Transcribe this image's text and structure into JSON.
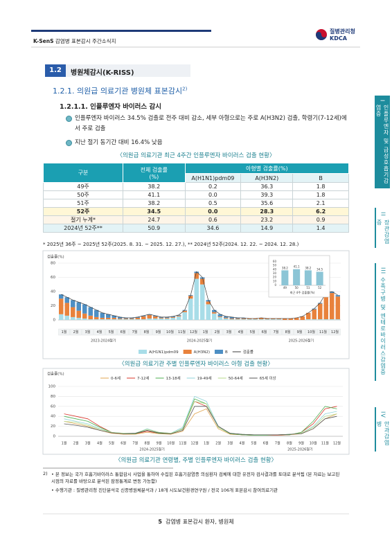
{
  "header": {
    "brand": "K-SenS",
    "title": "감염병 표본감시 주간소식지",
    "org": "질병관리청",
    "org_en": "KDCA"
  },
  "section": {
    "number": "1.2",
    "title": "병원체감시(K-RISS)"
  },
  "subsection": {
    "title": "1.2.1. 의원급 의료기관 병원체 표본감시",
    "note_ref": "2)"
  },
  "subsubsection": {
    "title": "1.2.1.1. 인플루엔자 바이러스 감시"
  },
  "bullets": [
    "인플루엔자 바이러스 34.5% 검출로 전주 대비 감소, 세부 아형으로는 주로 A(H3N2) 검출, 학령기(7-12세)에서 주로 검출",
    "지난 절기 동기간 대비 16.4% 낮음"
  ],
  "table": {
    "title": "〈의원급 의료기관 최근 4주간 인플루엔자 바이러스 검출 현황〉",
    "header": [
      "구분",
      "전체 검출률\n(%)",
      "아형별 검출률(%)"
    ],
    "subheader": [
      "A(H1N1)pdm09",
      "A(H3N2)",
      "B"
    ],
    "rows": [
      [
        "49주",
        "38.2",
        "0.2",
        "36.3",
        "1.8"
      ],
      [
        "50주",
        "41.1",
        "0.0",
        "39.3",
        "1.8"
      ],
      [
        "51주",
        "38.2",
        "0.5",
        "35.6",
        "2.1"
      ],
      [
        "52주",
        "34.5",
        "0.0",
        "28.3",
        "6.2"
      ],
      [
        "절기 누계*",
        "24.7",
        "0.6",
        "23.2",
        "0.9"
      ],
      [
        "2024년 52주**",
        "50.9",
        "34.6",
        "14.9",
        "1.4"
      ]
    ],
    "note": "* 2025년 36주 ~ 2025년 52주(2025. 8. 31. ~ 2025. 12. 27.), ** 2024년 52주(2024. 12. 22. ~ 2024. 12. 28.)"
  },
  "chart_data": [
    {
      "type": "bar",
      "stacked": true,
      "y_label": "검출률(%)",
      "ylim": [
        0,
        80
      ],
      "yticks": [
        0,
        20,
        40,
        60,
        80
      ],
      "grid": true,
      "categories": [
        "1월",
        null,
        "2월",
        null,
        "3월",
        null,
        "4월",
        null,
        "5월",
        null,
        "6월",
        null,
        "7월",
        null,
        "8월",
        null,
        "9월",
        null,
        "10월",
        null,
        "11월",
        null,
        "12월",
        null,
        "1월",
        null,
        "2월",
        null,
        "3월",
        null,
        "4월",
        null,
        "5월",
        null,
        "6월",
        null,
        "7월",
        null,
        "8월",
        null,
        "9월",
        null,
        "10월",
        null,
        "11월",
        null,
        "12월",
        null
      ],
      "seasons": [
        "2023-2024절기",
        "2024-2025절기",
        "2025-2026절기"
      ],
      "series": [
        {
          "name": "A(H1N1)pdm09",
          "color": "#a8dde8",
          "values": [
            8,
            6,
            4,
            3,
            2,
            1,
            1,
            1,
            1,
            1,
            1,
            1,
            1,
            1,
            1,
            2,
            2,
            2,
            2,
            3,
            5,
            11,
            30,
            58,
            50,
            22,
            9,
            4,
            2,
            1,
            1,
            1,
            1,
            1,
            1,
            1,
            1,
            1,
            0,
            0,
            0,
            0,
            1,
            1,
            1,
            1,
            1,
            1
          ]
        },
        {
          "name": "A(H3N2)",
          "color": "#e8823c",
          "values": [
            22,
            18,
            14,
            10,
            7,
            5,
            3,
            2,
            2,
            2,
            1,
            1,
            1,
            2,
            4,
            5,
            3,
            1,
            1,
            1,
            1,
            2,
            4,
            8,
            8,
            4,
            2,
            1,
            1,
            1,
            1,
            1,
            1,
            1,
            2,
            1,
            1,
            1,
            2,
            2,
            3,
            5,
            9,
            14,
            22,
            35,
            37,
            32
          ]
        },
        {
          "name": "B",
          "color": "#4d8fc4",
          "values": [
            6,
            8,
            10,
            12,
            13,
            12,
            10,
            7,
            5,
            3,
            2,
            1,
            1,
            1,
            1,
            1,
            1,
            1,
            1,
            1,
            1,
            1,
            1,
            2,
            2,
            2,
            3,
            3,
            2,
            2,
            1,
            1,
            0,
            0,
            0,
            0,
            0,
            0,
            0,
            0,
            0,
            0,
            0,
            1,
            1,
            2,
            2,
            2
          ]
        },
        {
          "name": "검출률",
          "type": "line",
          "color": "#3a3a3a",
          "values": [
            36,
            32,
            28,
            25,
            22,
            18,
            14,
            10,
            8,
            6,
            4,
            3,
            3,
            4,
            6,
            8,
            6,
            4,
            4,
            5,
            7,
            14,
            35,
            68,
            60,
            28,
            14,
            8,
            5,
            4,
            3,
            3,
            2,
            2,
            3,
            2,
            2,
            2,
            2,
            2,
            3,
            5,
            10,
            16,
            24,
            38,
            40,
            35
          ]
        }
      ]
    },
    {
      "type": "bar",
      "title": "최근 4주 검출률(%)",
      "categories": [
        "49",
        "50",
        "51",
        "52"
      ],
      "values": [
        38.2,
        41.1,
        38.2,
        34.5
      ],
      "color": "#8cc5d6",
      "ylim": [
        0,
        60
      ],
      "yticks": [
        0,
        10,
        20,
        30,
        40,
        50,
        60
      ]
    },
    {
      "type": "line",
      "y_label": "검출률(%)",
      "ylim": [
        0,
        100
      ],
      "yticks": [
        0,
        20,
        40,
        60,
        80,
        100
      ],
      "grid": true,
      "categories": [
        "1월",
        "2월",
        "3월",
        "4월",
        "5월",
        "6월",
        "7월",
        "8월",
        "9월",
        "10월",
        "11월",
        "12월",
        "1월",
        "2월",
        "3월",
        "4월",
        "5월",
        "6월",
        "7월",
        "8월",
        "9월",
        "10월",
        "11월",
        "12월"
      ],
      "seasons": [
        "2024-2025절기",
        "2025-2026절기"
      ],
      "series": [
        {
          "name": "0-6세",
          "color": "#e0a650",
          "values": [
            30,
            25,
            20,
            12,
            6,
            4,
            4,
            8,
            5,
            4,
            10,
            45,
            55,
            15,
            4,
            3,
            2,
            2,
            2,
            3,
            5,
            15,
            35,
            45
          ]
        },
        {
          "name": "7-12세",
          "color": "#d8352a",
          "values": [
            45,
            40,
            35,
            20,
            8,
            5,
            5,
            10,
            6,
            5,
            15,
            70,
            60,
            20,
            5,
            3,
            2,
            2,
            2,
            3,
            8,
            25,
            55,
            60
          ]
        },
        {
          "name": "13-18세",
          "color": "#4caf50",
          "values": [
            40,
            35,
            30,
            18,
            8,
            5,
            5,
            12,
            6,
            5,
            15,
            75,
            65,
            18,
            5,
            3,
            2,
            2,
            3,
            3,
            8,
            30,
            60,
            55
          ]
        },
        {
          "name": "19-49세",
          "color": "#8fd3d8",
          "values": [
            35,
            30,
            25,
            15,
            8,
            6,
            6,
            15,
            8,
            6,
            18,
            80,
            70,
            20,
            6,
            4,
            3,
            3,
            3,
            4,
            6,
            20,
            45,
            50
          ]
        },
        {
          "name": "50-64세",
          "color": "#b5d98a",
          "values": [
            30,
            28,
            22,
            14,
            8,
            6,
            6,
            14,
            8,
            6,
            14,
            70,
            65,
            18,
            6,
            4,
            3,
            3,
            3,
            4,
            6,
            18,
            40,
            45
          ]
        },
        {
          "name": "65세 이상",
          "color": "#555555",
          "values": [
            25,
            22,
            18,
            12,
            7,
            5,
            6,
            12,
            7,
            5,
            12,
            60,
            60,
            20,
            6,
            4,
            3,
            3,
            3,
            4,
            5,
            15,
            35,
            40
          ]
        }
      ]
    }
  ],
  "figure_captions": [
    "〈의원급 의료기관 주별 인플루엔자 바이러스 아형 검출 현황〉",
    "〈의원급 의료기관 연령별, 주별 인플루엔자 바이러스 검출 현황〉"
  ],
  "footnotes": [
    {
      "marker": "2)",
      "text": "• 본 정보는 국가 호흡기바이러스 통합감시 사업을 통하여 수집된 호흡기감염증 의심환자 검체에 대한 유전자 검사결과를 토대로 분석됨 (본 자료는 보고된 시점의 자료를 바탕으로 분석된 잠정통계로 변동 가능함)"
    },
    {
      "text": "• 수행기관 : 질병관리청 진단분석국 신종병원체분석과 / 18개 시도보건환경연구원 / 전국 106개 표본감시 참여의료기관"
    }
  ],
  "footer": {
    "page": "5",
    "title": "감염병 표본감시 환자, 병원체"
  },
  "side_tabs": [
    {
      "numeral": "I",
      "label": "인플루엔자 및 급성호흡기감염증"
    },
    {
      "numeral": "II",
      "label": "장관감염증"
    },
    {
      "numeral": "III",
      "label": "수족구병 및 엔테로바이러스감염증"
    },
    {
      "numeral": "IV",
      "label": "안과감염병"
    }
  ]
}
